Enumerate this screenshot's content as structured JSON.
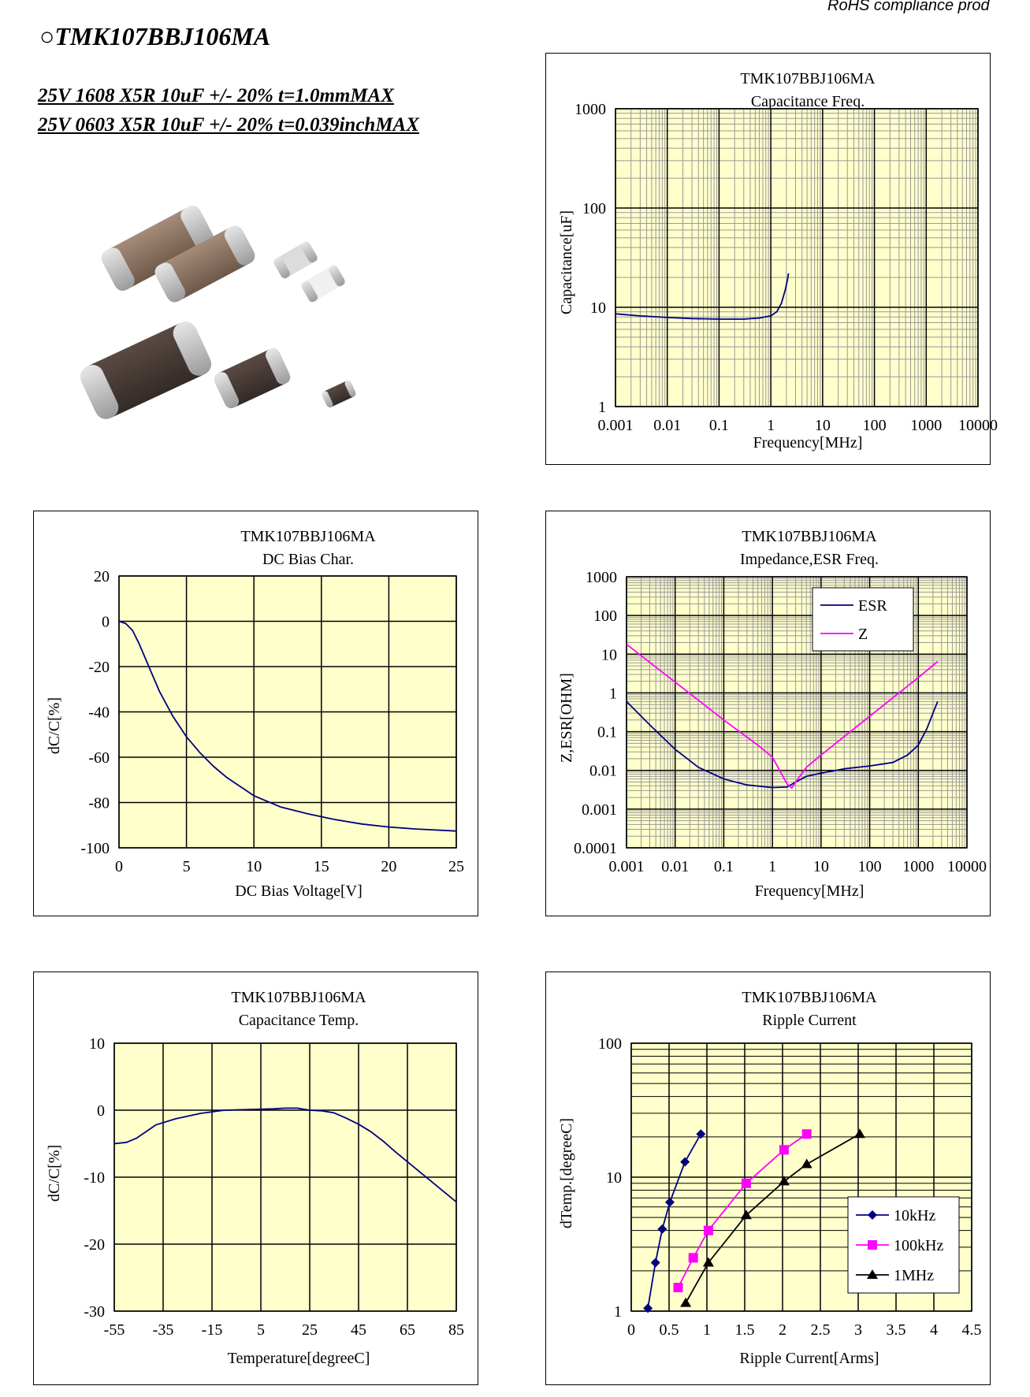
{
  "header": {
    "rohs": "RoHS compliance prod",
    "part_title": "○TMK107BBJ106MA",
    "spec_metric": "25V 1608 X5R 10uF +/- 20% t=1.0mmMAX",
    "spec_inch": "25V 0603 X5R 10uF +/- 20% t=0.039inchMAX"
  },
  "colors": {
    "plot_bg": "#ffffcc",
    "grid": "#000000",
    "minor_grid": "#999999",
    "navy": "#000080",
    "magenta": "#ff00ff",
    "black": "#000000"
  },
  "chart_data": [
    {
      "id": "capfreq",
      "type": "line",
      "title": "TMK107BBJ106MA",
      "subtitle": "Capacitance Freq.",
      "xlabel": "Frequency[MHz]",
      "ylabel": "Capacitance[uF]",
      "x_log": true,
      "y_log": true,
      "xlim": [
        0.001,
        10000
      ],
      "ylim": [
        1,
        1000
      ],
      "x_ticks": [
        {
          "v": 0.001,
          "label": "0.001"
        },
        {
          "v": 0.01,
          "label": "0.01"
        },
        {
          "v": 0.1,
          "label": "0.1"
        },
        {
          "v": 1,
          "label": "1"
        },
        {
          "v": 10,
          "label": "10"
        },
        {
          "v": 100,
          "label": "100"
        },
        {
          "v": 1000,
          "label": "1000"
        },
        {
          "v": 10000,
          "label": "10000"
        }
      ],
      "y_ticks": [
        {
          "v": 1,
          "label": "1"
        },
        {
          "v": 10,
          "label": "10"
        },
        {
          "v": 100,
          "label": "100"
        },
        {
          "v": 1000,
          "label": "1000"
        }
      ],
      "series": [
        {
          "color": "navy",
          "points": [
            [
              0.001,
              8.6
            ],
            [
              0.003,
              8.2
            ],
            [
              0.01,
              7.9
            ],
            [
              0.03,
              7.7
            ],
            [
              0.1,
              7.6
            ],
            [
              0.3,
              7.6
            ],
            [
              0.6,
              7.8
            ],
            [
              1,
              8.2
            ],
            [
              1.3,
              9
            ],
            [
              1.6,
              11
            ],
            [
              1.9,
              15
            ],
            [
              2.1,
              19
            ],
            [
              2.2,
              22
            ]
          ]
        }
      ]
    },
    {
      "id": "dcbias",
      "type": "line",
      "title": "TMK107BBJ106MA",
      "subtitle": "DC Bias Char.",
      "xlabel": "DC Bias Voltage[V]",
      "ylabel": "dC/C[%]",
      "xlim": [
        0,
        25
      ],
      "ylim": [
        -100,
        20
      ],
      "x_ticks": [
        {
          "v": 0,
          "label": "0"
        },
        {
          "v": 5,
          "label": "5"
        },
        {
          "v": 10,
          "label": "10"
        },
        {
          "v": 15,
          "label": "15"
        },
        {
          "v": 20,
          "label": "20"
        },
        {
          "v": 25,
          "label": "25"
        }
      ],
      "y_ticks": [
        {
          "v": 20,
          "label": "20"
        },
        {
          "v": 0,
          "label": "0"
        },
        {
          "v": -20,
          "label": "-20"
        },
        {
          "v": -40,
          "label": "-40"
        },
        {
          "v": -60,
          "label": "-60"
        },
        {
          "v": -80,
          "label": "-80"
        },
        {
          "v": -100,
          "label": "-100"
        }
      ],
      "series": [
        {
          "color": "navy",
          "points": [
            [
              0,
              0
            ],
            [
              0.5,
              -1
            ],
            [
              1,
              -4
            ],
            [
              1.5,
              -10
            ],
            [
              2,
              -17
            ],
            [
              3,
              -31
            ],
            [
              4,
              -42
            ],
            [
              5,
              -51
            ],
            [
              6,
              -58
            ],
            [
              7,
              -64
            ],
            [
              8,
              -69
            ],
            [
              9,
              -73
            ],
            [
              10,
              -77
            ],
            [
              12,
              -82
            ],
            [
              14,
              -85
            ],
            [
              16,
              -87.5
            ],
            [
              18,
              -89.5
            ],
            [
              20,
              -90.8
            ],
            [
              22,
              -91.7
            ],
            [
              25,
              -92.6
            ]
          ]
        }
      ]
    },
    {
      "id": "impedance",
      "type": "line",
      "title": "TMK107BBJ106MA",
      "subtitle": "Impedance,ESR Freq.",
      "xlabel": "Frequency[MHz]",
      "ylabel": "Z,ESR[OHM]",
      "x_log": true,
      "y_log": true,
      "xlim": [
        0.001,
        10000
      ],
      "ylim": [
        0.0001,
        1000
      ],
      "x_ticks": [
        {
          "v": 0.001,
          "label": "0.001"
        },
        {
          "v": 0.01,
          "label": "0.01"
        },
        {
          "v": 0.1,
          "label": "0.1"
        },
        {
          "v": 1,
          "label": "1"
        },
        {
          "v": 10,
          "label": "10"
        },
        {
          "v": 100,
          "label": "100"
        },
        {
          "v": 1000,
          "label": "1000"
        },
        {
          "v": 10000,
          "label": "10000"
        }
      ],
      "y_ticks": [
        {
          "v": 1000,
          "label": "1000"
        },
        {
          "v": 100,
          "label": "100"
        },
        {
          "v": 10,
          "label": "10"
        },
        {
          "v": 1,
          "label": "1"
        },
        {
          "v": 0.1,
          "label": "0.1"
        },
        {
          "v": 0.01,
          "label": "0.01"
        },
        {
          "v": 0.001,
          "label": "0.001"
        },
        {
          "v": 0.0001,
          "label": "0.0001"
        }
      ],
      "legend": [
        "ESR",
        "Z"
      ],
      "series": [
        {
          "name": "ESR",
          "color": "navy",
          "points": [
            [
              0.001,
              0.6
            ],
            [
              0.003,
              0.15
            ],
            [
              0.01,
              0.035
            ],
            [
              0.03,
              0.012
            ],
            [
              0.1,
              0.006
            ],
            [
              0.3,
              0.0042
            ],
            [
              1,
              0.0036
            ],
            [
              2,
              0.0037
            ],
            [
              3,
              0.005
            ],
            [
              5,
              0.007
            ],
            [
              10,
              0.0085
            ],
            [
              30,
              0.011
            ],
            [
              100,
              0.013
            ],
            [
              300,
              0.016
            ],
            [
              600,
              0.025
            ],
            [
              1000,
              0.045
            ],
            [
              1500,
              0.12
            ],
            [
              2000,
              0.3
            ],
            [
              2500,
              0.6
            ]
          ]
        },
        {
          "name": "Z",
          "color": "magenta",
          "points": [
            [
              0.001,
              18
            ],
            [
              0.01,
              1.9
            ],
            [
              0.1,
              0.2
            ],
            [
              0.5,
              0.045
            ],
            [
              1,
              0.022
            ],
            [
              2,
              0.0045
            ],
            [
              2.5,
              0.0035
            ],
            [
              3,
              0.005
            ],
            [
              5,
              0.012
            ],
            [
              10,
              0.025
            ],
            [
              100,
              0.25
            ],
            [
              1000,
              2.5
            ],
            [
              2500,
              6.5
            ]
          ]
        }
      ]
    },
    {
      "id": "captemp",
      "type": "line",
      "title": "TMK107BBJ106MA",
      "subtitle": "Capacitance Temp.",
      "xlabel": "Temperature[degreeC]",
      "ylabel": "dC/C[%]",
      "xlim": [
        -55,
        85
      ],
      "ylim": [
        -30,
        10
      ],
      "x_ticks": [
        {
          "v": -55,
          "label": "-55"
        },
        {
          "v": -35,
          "label": "-35"
        },
        {
          "v": -15,
          "label": "-15"
        },
        {
          "v": 5,
          "label": "5"
        },
        {
          "v": 25,
          "label": "25"
        },
        {
          "v": 45,
          "label": "45"
        },
        {
          "v": 65,
          "label": "65"
        },
        {
          "v": 85,
          "label": "85"
        }
      ],
      "y_ticks": [
        {
          "v": 10,
          "label": "10"
        },
        {
          "v": 0,
          "label": "0"
        },
        {
          "v": -10,
          "label": "-10"
        },
        {
          "v": -20,
          "label": "-20"
        },
        {
          "v": -30,
          "label": "-30"
        }
      ],
      "series": [
        {
          "color": "navy",
          "points": [
            [
              -55,
              -5
            ],
            [
              -50,
              -4.8
            ],
            [
              -46,
              -4.2
            ],
            [
              -42,
              -3.2
            ],
            [
              -38,
              -2.2
            ],
            [
              -30,
              -1.3
            ],
            [
              -20,
              -0.5
            ],
            [
              -10,
              0
            ],
            [
              0,
              0.1
            ],
            [
              10,
              0.2
            ],
            [
              15,
              0.3
            ],
            [
              20,
              0.3
            ],
            [
              25,
              0
            ],
            [
              30,
              -0.1
            ],
            [
              35,
              -0.4
            ],
            [
              40,
              -1.2
            ],
            [
              45,
              -2.1
            ],
            [
              50,
              -3.2
            ],
            [
              55,
              -4.6
            ],
            [
              60,
              -6.2
            ],
            [
              65,
              -7.7
            ],
            [
              70,
              -9.2
            ],
            [
              75,
              -10.7
            ],
            [
              80,
              -12.2
            ],
            [
              85,
              -13.7
            ]
          ]
        }
      ]
    },
    {
      "id": "ripple",
      "type": "line",
      "title": "TMK107BBJ106MA",
      "subtitle": "Ripple Current",
      "xlabel": "Ripple Current[Arms]",
      "ylabel": "dTemp.[degreeC]",
      "y_log": true,
      "xlim": [
        0,
        4.5
      ],
      "ylim": [
        1,
        100
      ],
      "x_ticks": [
        {
          "v": 0,
          "label": "0"
        },
        {
          "v": 0.5,
          "label": "0.5"
        },
        {
          "v": 1,
          "label": "1"
        },
        {
          "v": 1.5,
          "label": "1.5"
        },
        {
          "v": 2,
          "label": "2"
        },
        {
          "v": 2.5,
          "label": "2.5"
        },
        {
          "v": 3,
          "label": "3"
        },
        {
          "v": 3.5,
          "label": "3.5"
        },
        {
          "v": 4,
          "label": "4"
        },
        {
          "v": 4.5,
          "label": "4.5"
        }
      ],
      "y_ticks": [
        {
          "v": 100,
          "label": "100"
        },
        {
          "v": 10,
          "label": "10"
        },
        {
          "v": 1,
          "label": "1"
        }
      ],
      "legend": [
        "10kHz",
        "100kHz",
        "1MHz"
      ],
      "series": [
        {
          "name": "10kHz",
          "color": "navy",
          "marker": "diamond",
          "points": [
            [
              0.22,
              1.05
            ],
            [
              0.32,
              2.3
            ],
            [
              0.41,
              4.1
            ],
            [
              0.51,
              6.5
            ],
            [
              0.71,
              13
            ],
            [
              0.92,
              21
            ]
          ]
        },
        {
          "name": "100kHz",
          "color": "magenta",
          "marker": "square",
          "points": [
            [
              0.62,
              1.5
            ],
            [
              0.82,
              2.5
            ],
            [
              1.02,
              4
            ],
            [
              1.52,
              9
            ],
            [
              2.02,
              16
            ],
            [
              2.32,
              21
            ]
          ]
        },
        {
          "name": "1MHz",
          "color": "black",
          "marker": "triangle",
          "points": [
            [
              0.72,
              1.15
            ],
            [
              1.02,
              2.3
            ],
            [
              1.52,
              5.2
            ],
            [
              2.02,
              9.3
            ],
            [
              2.32,
              12.5
            ],
            [
              3.02,
              21
            ]
          ]
        }
      ]
    }
  ]
}
